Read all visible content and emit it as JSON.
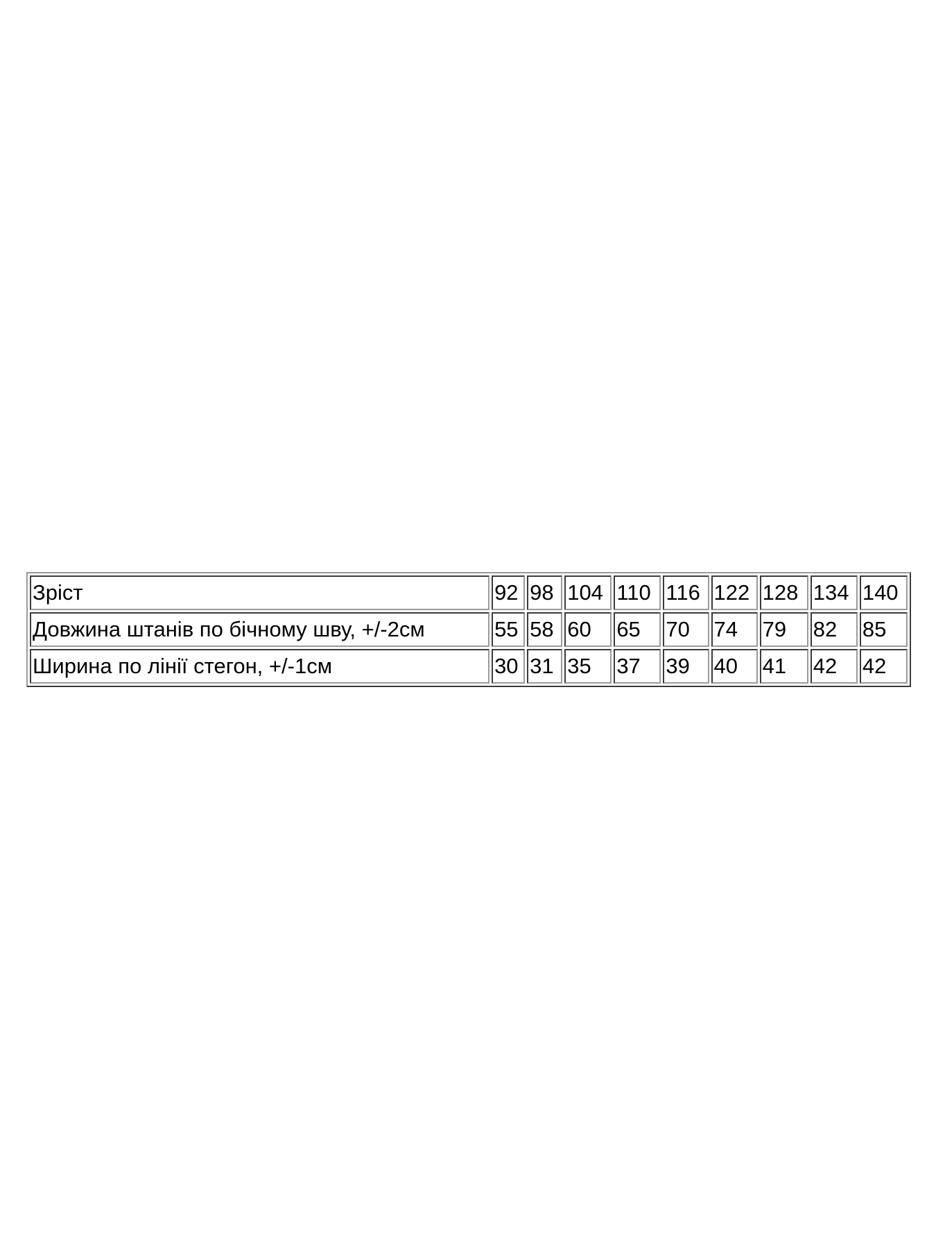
{
  "table": {
    "rows": [
      {
        "label": "Зріст",
        "values": [
          "92",
          "98",
          "104",
          "110",
          "116",
          "122",
          "128",
          "134",
          "140"
        ]
      },
      {
        "label": "Довжина штанів по бічному шву, +/-2см",
        "values": [
          "55",
          "58",
          "60",
          "65",
          "70",
          "74",
          "79",
          "82",
          "85"
        ]
      },
      {
        "label": "Ширина по лінії стегон, +/-1см",
        "values": [
          "30",
          "31",
          "35",
          "37",
          "39",
          "40",
          "41",
          "42",
          "42"
        ]
      }
    ]
  }
}
